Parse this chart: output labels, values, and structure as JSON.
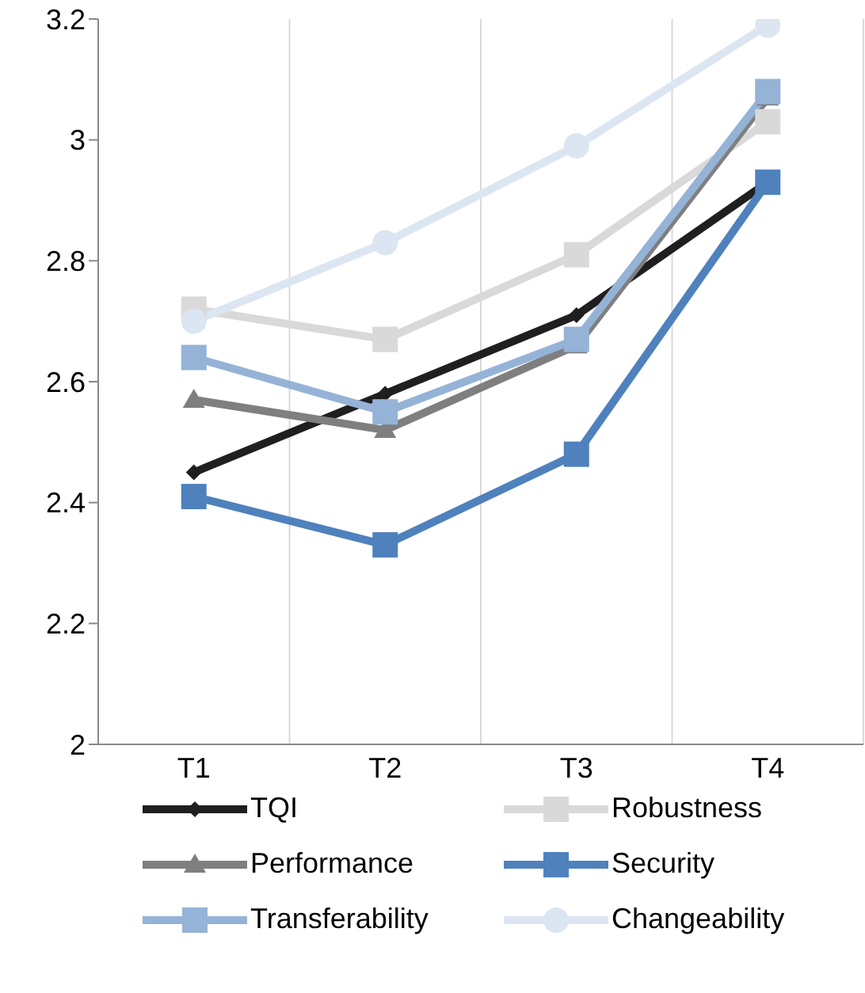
{
  "chart_data": {
    "type": "line",
    "categories": [
      "T1",
      "T2",
      "T3",
      "T4"
    ],
    "series": [
      {
        "name": "TQI",
        "color": "#1f1f1f",
        "marker": "diamond",
        "values": [
          2.45,
          2.58,
          2.71,
          2.93
        ]
      },
      {
        "name": "Robustness",
        "color": "#d9d9d9",
        "marker": "square",
        "values": [
          2.72,
          2.67,
          2.81,
          3.03
        ]
      },
      {
        "name": "Performance",
        "color": "#7f7f7f",
        "marker": "triangle",
        "values": [
          2.57,
          2.52,
          2.66,
          3.07
        ]
      },
      {
        "name": "Security",
        "color": "#4f81bd",
        "marker": "square",
        "values": [
          2.41,
          2.33,
          2.48,
          2.93
        ]
      },
      {
        "name": "Transferability",
        "color": "#95b3d7",
        "marker": "square",
        "values": [
          2.64,
          2.55,
          2.67,
          3.08
        ]
      },
      {
        "name": "Changeability",
        "color": "#dce6f2",
        "marker": "circle",
        "values": [
          2.7,
          2.83,
          2.99,
          3.19
        ]
      }
    ],
    "ylim": [
      2,
      3.2
    ],
    "yticks": [
      2,
      2.2,
      2.4,
      2.6,
      2.8,
      3,
      3.2
    ],
    "grid": "x",
    "legend": "bottom",
    "line_style": "solid"
  }
}
